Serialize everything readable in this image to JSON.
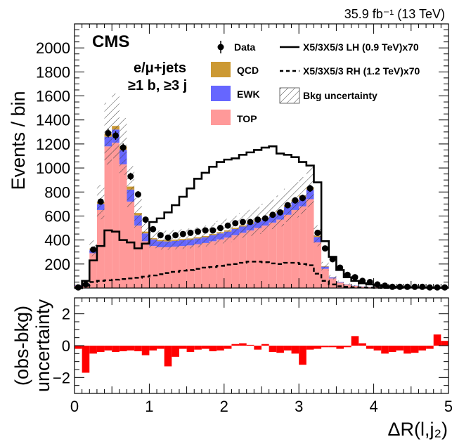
{
  "chart_data": [
    {
      "type": "histogram",
      "lumi_label": "35.9 fb⁻¹ (13 TeV)",
      "experiment_label": "CMS",
      "channel_label_line1": "e/μ+jets",
      "channel_label_line2": "≥1 b, ≥3 j",
      "ylabel": "Events / bin",
      "ylim": [
        0,
        2200
      ],
      "yticks": [
        "200",
        "400",
        "600",
        "800",
        "1000",
        "1200",
        "1400",
        "1600",
        "1800",
        "2000"
      ],
      "xlim": [
        0,
        5
      ],
      "bin_width": 0.1,
      "bin_low_edges": [
        0.0,
        0.1,
        0.2,
        0.3,
        0.4,
        0.5,
        0.6,
        0.7,
        0.8,
        0.9,
        1.0,
        1.1,
        1.2,
        1.3,
        1.4,
        1.5,
        1.6,
        1.7,
        1.8,
        1.9,
        2.0,
        2.1,
        2.2,
        2.3,
        2.4,
        2.5,
        2.6,
        2.7,
        2.8,
        2.9,
        3.0,
        3.1,
        3.2,
        3.3,
        3.4,
        3.5,
        3.6,
        3.7,
        3.8,
        3.9,
        4.0,
        4.1,
        4.2,
        4.3,
        4.4,
        4.5,
        4.6,
        4.7,
        4.8,
        4.9
      ],
      "legend": {
        "data": "Data",
        "qcd": "QCD",
        "ewk": "EWK",
        "top": "TOP",
        "signal_lh": "X5/3X5/3 LH (0.9 TeV)x70",
        "signal_rh": "X5/3X5/3 RH (1.2 TeV)x70",
        "bkg_unc": "Bkg uncertainty"
      },
      "colors": {
        "qcd": "#cc9933",
        "ewk": "#6666ff",
        "top": "#ff9999",
        "ratio": "#ff0000"
      },
      "series": [
        {
          "name": "TOP",
          "values": [
            20,
            30,
            290,
            650,
            1180,
            1210,
            1030,
            720,
            520,
            390,
            350,
            340,
            340,
            345,
            350,
            355,
            365,
            375,
            390,
            405,
            420,
            440,
            460,
            480,
            500,
            520,
            545,
            570,
            610,
            650,
            680,
            740,
            380,
            160,
            80,
            45,
            28,
            18,
            12,
            8,
            6,
            4,
            3,
            2,
            2,
            1,
            1,
            1,
            1,
            0
          ]
        },
        {
          "name": "EWK",
          "values": [
            5,
            10,
            30,
            50,
            80,
            110,
            120,
            100,
            85,
            65,
            55,
            50,
            48,
            48,
            48,
            48,
            48,
            48,
            50,
            50,
            50,
            52,
            52,
            53,
            54,
            55,
            57,
            60,
            65,
            70,
            74,
            80,
            45,
            18,
            9,
            5,
            3,
            2,
            1,
            1,
            0,
            0,
            0,
            0,
            0,
            0,
            0,
            0,
            0,
            0
          ]
        },
        {
          "name": "QCD",
          "values": [
            2,
            5,
            10,
            15,
            25,
            30,
            30,
            25,
            20,
            15,
            10,
            10,
            10,
            10,
            10,
            10,
            10,
            10,
            10,
            10,
            10,
            10,
            10,
            10,
            10,
            10,
            12,
            12,
            14,
            15,
            16,
            20,
            10,
            4,
            2,
            1,
            1,
            0,
            0,
            0,
            0,
            0,
            0,
            0,
            0,
            0,
            0,
            0,
            0,
            0
          ]
        },
        {
          "name": "Data",
          "values": [
            5,
            30,
            320,
            720,
            1290,
            1270,
            1170,
            930,
            780,
            570,
            490,
            440,
            420,
            440,
            450,
            460,
            470,
            480,
            480,
            500,
            520,
            540,
            550,
            550,
            570,
            580,
            610,
            630,
            690,
            730,
            750,
            830,
            460,
            330,
            240,
            170,
            110,
            90,
            60,
            50,
            30,
            20,
            10,
            10,
            10,
            10,
            10,
            5,
            5,
            5
          ]
        },
        {
          "name": "X5/3X5/3 LH (0.9 TeV)x70",
          "values": [
            0,
            60,
            230,
            350,
            480,
            470,
            400,
            380,
            330,
            370,
            550,
            580,
            630,
            690,
            760,
            830,
            910,
            960,
            1010,
            1050,
            1070,
            1080,
            1110,
            1130,
            1150,
            1170,
            1180,
            1120,
            1110,
            1090,
            1050,
            1020,
            880,
            390,
            260,
            150,
            90,
            60,
            40,
            30,
            20,
            15,
            10,
            8,
            6,
            5,
            4,
            3,
            2,
            2
          ]
        },
        {
          "name": "X5/3X5/3 RH (1.2 TeV)x70",
          "values": [
            0,
            20,
            50,
            60,
            65,
            70,
            75,
            80,
            85,
            95,
            105,
            115,
            125,
            135,
            145,
            150,
            160,
            170,
            175,
            185,
            195,
            200,
            210,
            220,
            220,
            215,
            205,
            200,
            210,
            210,
            200,
            190,
            120,
            60,
            30,
            15,
            10,
            6,
            4,
            3,
            2,
            1,
            1,
            1,
            1,
            0,
            0,
            0,
            0,
            0
          ]
        }
      ],
      "bkg_uncertainty_fraction": 0.2
    },
    {
      "type": "bar",
      "ylabel_line1": "(obs-bkg)",
      "ylabel_line2": "uncertainty",
      "ylim": [
        -3,
        3
      ],
      "yticks": [
        "-2",
        "0",
        "2"
      ],
      "xlabel": "ΔR(l,j₂)",
      "xlim": [
        0,
        5
      ],
      "xticks": [
        "0",
        "1",
        "2",
        "3",
        "4",
        "5"
      ],
      "values": [
        -0.2,
        -1.7,
        -0.5,
        -0.4,
        -0.3,
        -0.4,
        -0.35,
        -0.3,
        -0.35,
        -0.6,
        -0.3,
        -0.2,
        -1.3,
        -0.7,
        -0.2,
        -0.4,
        -0.25,
        -0.2,
        -0.35,
        -0.3,
        -0.2,
        0.1,
        0.15,
        0.05,
        -0.25,
        0.1,
        -0.4,
        -0.45,
        -0.3,
        -0.5,
        -1.2,
        -0.25,
        -0.2,
        -0.1,
        -0.1,
        -0.2,
        -0.1,
        0.6,
        0.15,
        -0.2,
        -0.3,
        -0.5,
        -0.4,
        -0.3,
        -0.5,
        -0.45,
        -0.3,
        -0.2,
        0.7,
        0.3
      ]
    }
  ]
}
